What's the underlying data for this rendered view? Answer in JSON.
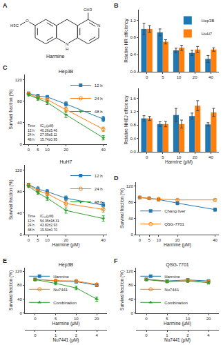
{
  "chart_data": [
    {
      "type": "structure",
      "title": "Harmine",
      "annotations": [
        "A"
      ],
      "atom_labels": [
        "N",
        "H",
        "N",
        "CH3",
        "O",
        "H3C"
      ]
    },
    {
      "type": "bar",
      "annotations": [
        "B"
      ],
      "ylabel": "Relative HR efficiency",
      "categories": [
        0,
        5,
        10,
        20,
        40
      ],
      "series": [
        {
          "name": "Hep3B",
          "values": [
            1.0,
            0.92,
            0.5,
            0.44,
            0.3
          ],
          "errors": [
            0.13,
            0.08,
            0.05,
            0.06,
            0.08
          ]
        },
        {
          "name": "HuH7",
          "values": [
            1.0,
            0.7,
            0.56,
            0.52,
            0.52
          ],
          "errors": [
            0.08,
            0.05,
            0.06,
            0.07,
            0.04
          ]
        }
      ],
      "ylim": [
        0.0,
        1.45
      ],
      "yticks": [
        {
          "value": 0.0,
          "label": "0.0"
        },
        0.4,
        0.8,
        1.2
      ],
      "grid": false,
      "legend": "upper right"
    },
    {
      "type": "bar",
      "xlabel": "Harmine (μM)",
      "ylabel": "Relative NHEJ efficiency",
      "categories": [
        0,
        5,
        10,
        20,
        40
      ],
      "series": [
        {
          "name": "Hep3B",
          "values": [
            1.0,
            0.83,
            1.1,
            1.07,
            0.82
          ],
          "errors": [
            0.08,
            0.07,
            0.2,
            0.09,
            0.05
          ]
        },
        {
          "name": "HuH7",
          "values": [
            1.0,
            0.83,
            0.83,
            1.38,
            1.18
          ],
          "errors": [
            0.06,
            0.08,
            0.12,
            0.15,
            0.12
          ]
        }
      ],
      "ylim": [
        0.0,
        1.9
      ],
      "yticks": [
        {
          "value": 0.0,
          "label": "0.0"
        },
        0.4,
        0.8,
        1.2,
        1.6
      ],
      "grid": false
    },
    {
      "type": "line",
      "title": "Hep3B",
      "annotations": [
        "C"
      ],
      "ylabel": "Survival fraction (%)",
      "x": [
        0,
        5,
        10,
        20,
        40
      ],
      "series": [
        {
          "name": "12 h",
          "marker": "square",
          "values": [
            95,
            90,
            88,
            75,
            47
          ],
          "errors": [
            2,
            3,
            3,
            4,
            5
          ]
        },
        {
          "name": "24 h",
          "marker": "circle-open",
          "values": [
            94,
            87,
            83,
            65,
            28
          ],
          "errors": [
            2,
            3,
            4,
            4,
            4
          ]
        },
        {
          "name": "48 h",
          "marker": "triangle-down",
          "values": [
            92,
            85,
            78,
            55,
            12
          ],
          "errors": [
            2,
            3,
            4,
            5,
            4
          ]
        }
      ],
      "xlim": [
        -2,
        42
      ],
      "xticks": [
        0,
        5,
        10,
        20,
        40
      ],
      "ylim": [
        0,
        130
      ],
      "yticks": [
        0,
        40,
        80,
        120
      ],
      "grid": false,
      "legend": "upper right",
      "table": {
        "header": [
          "Time",
          "IC₅₀(μM)"
        ],
        "rows": [
          [
            "12 h",
            "40.26±5.46"
          ],
          [
            "24 h",
            "27.09±5.11"
          ],
          [
            "48 h",
            "15.74±0.95"
          ]
        ]
      }
    },
    {
      "type": "line",
      "title": "HuH7",
      "xlabel": "Harmine (μM)",
      "ylabel": "Survival fraction (%)",
      "x": [
        0,
        5,
        10,
        20,
        40
      ],
      "series": [
        {
          "name": "12 h",
          "marker": "square",
          "values": [
            93,
            85,
            80,
            68,
            55
          ],
          "errors": [
            3,
            4,
            4,
            4,
            5
          ]
        },
        {
          "name": "24 h",
          "marker": "circle-open",
          "values": [
            92,
            82,
            76,
            58,
            47
          ],
          "errors": [
            2,
            3,
            3,
            5,
            5
          ]
        },
        {
          "name": "48 h",
          "marker": "triangle-down",
          "values": [
            90,
            78,
            68,
            45,
            30
          ],
          "errors": [
            2,
            3,
            4,
            5,
            5
          ]
        }
      ],
      "xlim": [
        -2,
        42
      ],
      "xticks": [
        0,
        5,
        10,
        20,
        40
      ],
      "ylim": [
        0,
        130
      ],
      "yticks": [
        0,
        40,
        80,
        120
      ],
      "grid": false,
      "legend": "upper right",
      "table": {
        "header": [
          "Time",
          "IC₅₀(μM)"
        ],
        "rows": [
          [
            "12 h",
            "54.35±18.31"
          ],
          [
            "24 h",
            "43.82±2.93"
          ],
          [
            "48 h",
            "19.50±0.70"
          ]
        ]
      }
    },
    {
      "type": "line",
      "annotations": [
        "D"
      ],
      "xlabel": "Harmine (μM)",
      "ylabel": "Survival fraction (%)",
      "x": [
        0,
        5,
        10,
        20,
        40
      ],
      "series": [
        {
          "name": "Chang liver",
          "marker": "square",
          "values": [
            92,
            90,
            87,
            78,
            62
          ],
          "errors": [
            2,
            2,
            3,
            4,
            4
          ]
        },
        {
          "name": "QSG-7701",
          "marker": "circle-open",
          "values": [
            92,
            90,
            88,
            86,
            86
          ],
          "errors": [
            2,
            2,
            3,
            3,
            3
          ]
        }
      ],
      "xlim": [
        -2,
        42
      ],
      "xticks": [
        0,
        5,
        10,
        20,
        40
      ],
      "ylim": [
        0,
        130
      ],
      "yticks": [
        0,
        40,
        80,
        120
      ],
      "grid": false,
      "legend": "lower left"
    },
    {
      "type": "line",
      "title": "Hep3B",
      "annotations": [
        "E"
      ],
      "ylabel": "Survival fraction (%)",
      "categories": [
        0,
        5,
        10,
        20
      ],
      "xlabel": "Harmine (μM)",
      "x2categories": [
        0,
        1,
        2,
        4
      ],
      "x2label": "Nu7441 (μM)",
      "series": [
        {
          "name": "Harmine",
          "marker": "square",
          "values": [
            97,
            92,
            90,
            80
          ],
          "errors": [
            2,
            3,
            3,
            4
          ]
        },
        {
          "name": "Nu7441",
          "marker": "circle-open",
          "values": [
            96,
            93,
            92,
            82
          ],
          "errors": [
            2,
            3,
            3,
            3
          ]
        },
        {
          "name": "Combination",
          "marker": "triangle-up",
          "values": [
            96,
            85,
            72,
            40
          ],
          "errors": [
            3,
            4,
            5,
            6
          ]
        }
      ],
      "ylim": [
        0,
        130
      ],
      "yticks": [
        0,
        40,
        80,
        120
      ],
      "grid": false,
      "legend": "lower left"
    },
    {
      "type": "line",
      "title": "QSG-7701",
      "annotations": [
        "F"
      ],
      "ylabel": "Survival fraction (%)",
      "categories": [
        0,
        5,
        10,
        20
      ],
      "xlabel": "Harmine (μM)",
      "x2categories": [
        0,
        1,
        2,
        4
      ],
      "x2label": "Nu7441 (μM)",
      "series": [
        {
          "name": "Harmine",
          "marker": "square",
          "values": [
            97,
            92,
            95,
            92
          ],
          "errors": [
            2,
            3,
            3,
            3
          ]
        },
        {
          "name": "Nu7441",
          "marker": "circle-open",
          "values": [
            96,
            91,
            93,
            90
          ],
          "errors": [
            2,
            3,
            3,
            3
          ]
        },
        {
          "name": "Combination",
          "marker": "triangle-up",
          "values": [
            96,
            90,
            92,
            87
          ],
          "errors": [
            2,
            3,
            4,
            4
          ]
        }
      ],
      "ylim": [
        0,
        130
      ],
      "yticks": [
        0,
        40,
        80,
        120
      ],
      "grid": false,
      "legend": "lower left"
    }
  ]
}
